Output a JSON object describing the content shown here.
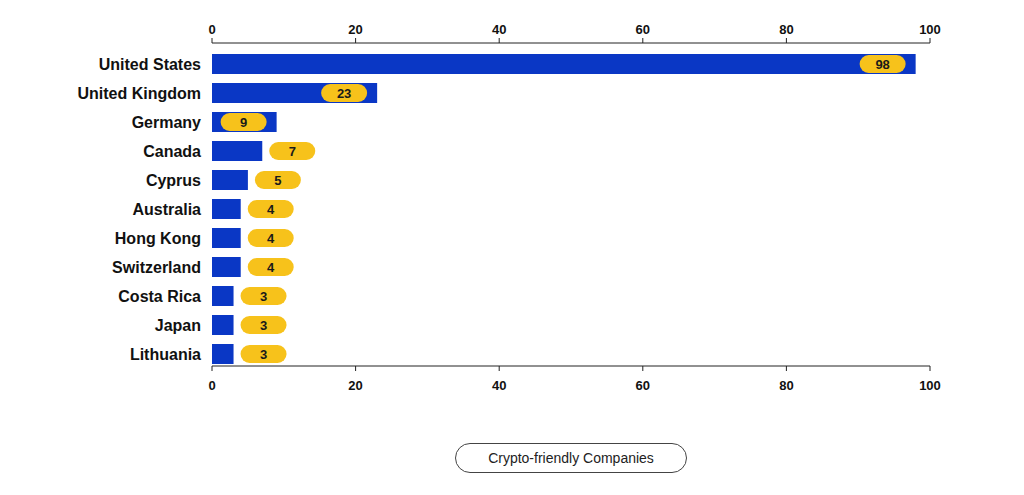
{
  "chart_data": {
    "type": "bar",
    "orientation": "horizontal",
    "categories": [
      "United States",
      "United Kingdom",
      "Germany",
      "Canada",
      "Cyprus",
      "Australia",
      "Hong Kong",
      "Switzerland",
      "Costa Rica",
      "Japan",
      "Lithuania"
    ],
    "series": [
      {
        "name": "Crypto-friendly Companies",
        "color": "#0a37c5",
        "values": [
          98,
          23,
          9,
          7,
          5,
          4,
          4,
          4,
          3,
          3,
          3
        ]
      }
    ],
    "xlim": [
      0,
      100
    ],
    "xticks": [
      0,
      20,
      40,
      60,
      80,
      100
    ],
    "grid": false,
    "data_labels": true,
    "legend": "bottom"
  }
}
